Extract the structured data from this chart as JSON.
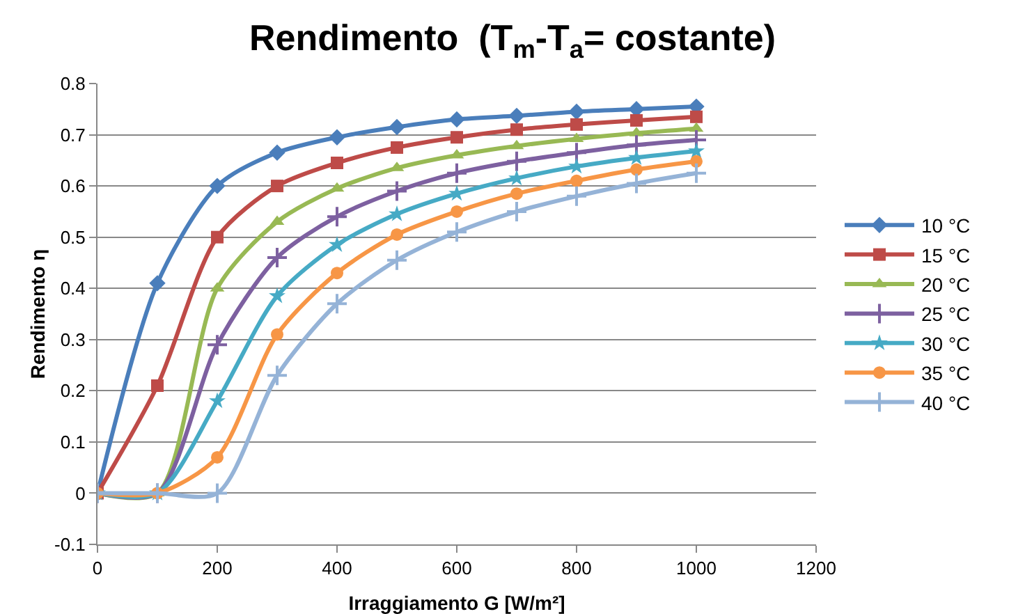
{
  "chart_data": {
    "type": "line",
    "title": "Rendimento  (T$_{m}$-T$_{a}$= costante)",
    "xlabel": "Irraggiamento G [W/m²]",
    "ylabel": "Rendimento η",
    "x": [
      0,
      100,
      200,
      300,
      400,
      500,
      600,
      700,
      800,
      900,
      1000
    ],
    "series": [
      {
        "name": "10 °C",
        "color": "#4a7ebb",
        "marker": "diamond",
        "values": [
          0,
          0.41,
          0.6,
          0.665,
          0.695,
          0.715,
          0.73,
          0.737,
          0.745,
          0.75,
          0.755
        ]
      },
      {
        "name": "15 °C",
        "color": "#be4b48",
        "marker": "square",
        "values": [
          0,
          0.21,
          0.5,
          0.6,
          0.645,
          0.675,
          0.695,
          0.71,
          0.72,
          0.728,
          0.735
        ]
      },
      {
        "name": "20 °C",
        "color": "#98b954",
        "marker": "triangle",
        "values": [
          0,
          0,
          0.4,
          0.53,
          0.595,
          0.635,
          0.66,
          0.678,
          0.692,
          0.703,
          0.712
        ]
      },
      {
        "name": "25 °C",
        "color": "#7d60a0",
        "marker": "cross",
        "values": [
          0,
          0,
          0.29,
          0.46,
          0.54,
          0.59,
          0.625,
          0.648,
          0.665,
          0.68,
          0.69
        ]
      },
      {
        "name": "30 °C",
        "color": "#46aac5",
        "marker": "star",
        "values": [
          0,
          0,
          0.18,
          0.385,
          0.485,
          0.545,
          0.585,
          0.615,
          0.638,
          0.655,
          0.668
        ]
      },
      {
        "name": "35 °C",
        "color": "#f79646",
        "marker": "circle",
        "values": [
          0,
          0,
          0.07,
          0.31,
          0.43,
          0.505,
          0.55,
          0.585,
          0.61,
          0.632,
          0.648
        ]
      },
      {
        "name": "40 °C",
        "color": "#95b3d7",
        "marker": "cross",
        "values": [
          0,
          0,
          0,
          0.23,
          0.37,
          0.455,
          0.51,
          0.55,
          0.58,
          0.605,
          0.625
        ]
      }
    ],
    "xlim": [
      0,
      1200
    ],
    "xticks": [
      0,
      200,
      400,
      600,
      800,
      1000,
      1200
    ],
    "ylim": [
      -0.1,
      0.8
    ],
    "yticks": [
      -0.1,
      0,
      0.1,
      0.2,
      0.3,
      0.4,
      0.5,
      0.6,
      0.7,
      0.8
    ],
    "grid": "y",
    "legend": "right",
    "line_style": "solid"
  }
}
